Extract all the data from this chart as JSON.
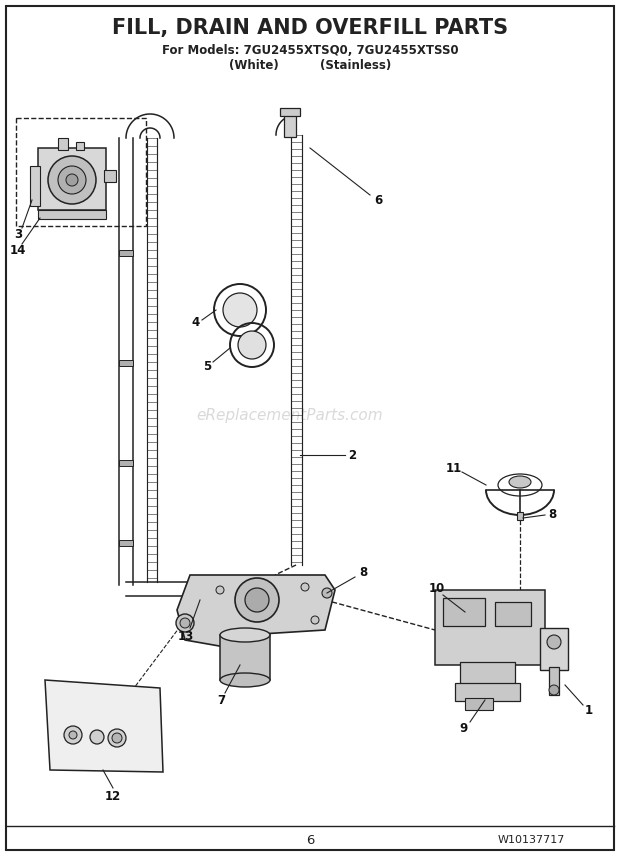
{
  "title": "FILL, DRAIN AND OVERFILL PARTS",
  "subtitle_line1": "For Models: 7GU2455XTSQ0, 7GU2455XTSS0",
  "subtitle_line2": "(White)          (Stainless)",
  "watermark": "eReplacementParts.com",
  "page_number": "6",
  "doc_number": "W10137717",
  "background_color": "#ffffff",
  "border_color": "#000000",
  "diagram_color": "#222222",
  "figsize": [
    6.2,
    8.56
  ],
  "dpi": 100,
  "title_fontsize": 15,
  "subtitle_fontsize": 8.5,
  "label_fontsize": 8.5
}
